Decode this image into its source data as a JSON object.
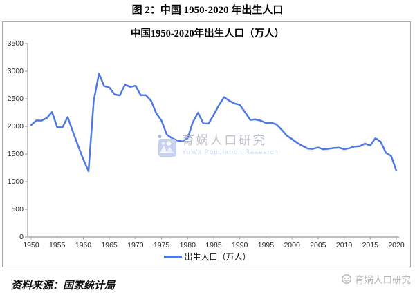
{
  "figure_title": "图 2：中国 1950-2020 年出生人口",
  "source_note": "资料来源：国家统计局",
  "watermark": {
    "cn": "育娲人口研究",
    "en": "YuWa Population Research",
    "corner_cn": "育娲人口研究"
  },
  "colors": {
    "line": "#4e78e2",
    "axis": "#9b9b9b",
    "border": "#a8a8a8",
    "tick_text": "#262626",
    "watermark_gray": "#b2b6c0",
    "watermark_blue": "#cdd9f1",
    "logo_fill": "#c7d1f1",
    "logo_shape": "#aebdec",
    "corner_gray": "#b5b5b5"
  },
  "chart_data": {
    "type": "line",
    "title": "中国1950-2020年出生人口（万人）",
    "legend": [
      "出生人口（万人）"
    ],
    "legend_position": "bottom",
    "grid": false,
    "xlabel": "",
    "ylabel": "",
    "xlim": [
      1950,
      2020
    ],
    "ylim": [
      0,
      3500
    ],
    "yticks": [
      0,
      500,
      1000,
      1500,
      2000,
      2500,
      3000,
      3500
    ],
    "xticks": [
      1950,
      1955,
      1960,
      1965,
      1970,
      1975,
      1980,
      1985,
      1990,
      1995,
      2000,
      2005,
      2010,
      2015,
      2020
    ],
    "x": [
      1950,
      1951,
      1952,
      1953,
      1954,
      1955,
      1956,
      1957,
      1958,
      1959,
      1960,
      1961,
      1962,
      1963,
      1964,
      1965,
      1966,
      1967,
      1968,
      1969,
      1970,
      1971,
      1972,
      1973,
      1974,
      1975,
      1976,
      1977,
      1978,
      1979,
      1980,
      1981,
      1982,
      1983,
      1984,
      1985,
      1986,
      1987,
      1988,
      1989,
      1990,
      1991,
      1992,
      1993,
      1994,
      1995,
      1996,
      1997,
      1998,
      1999,
      2000,
      2001,
      2002,
      2003,
      2004,
      2005,
      2006,
      2007,
      2008,
      2009,
      2010,
      2011,
      2012,
      2013,
      2014,
      2015,
      2016,
      2017,
      2018,
      2019,
      2020
    ],
    "values": [
      2023,
      2107,
      2105,
      2151,
      2260,
      1984,
      1982,
      2169,
      1909,
      1650,
      1402,
      1190,
      2464,
      2954,
      2729,
      2704,
      2577,
      2563,
      2757,
      2715,
      2736,
      2567,
      2566,
      2463,
      2235,
      2102,
      1853,
      1787,
      1745,
      1727,
      1787,
      2078,
      2247,
      2052,
      2050,
      2211,
      2384,
      2529,
      2464,
      2414,
      2391,
      2258,
      2119,
      2126,
      2104,
      2063,
      2067,
      2038,
      1942,
      1834,
      1771,
      1702,
      1647,
      1599,
      1593,
      1617,
      1585,
      1595,
      1608,
      1615,
      1588,
      1604,
      1635,
      1640,
      1687,
      1655,
      1786,
      1723,
      1523,
      1465,
      1200
    ]
  }
}
